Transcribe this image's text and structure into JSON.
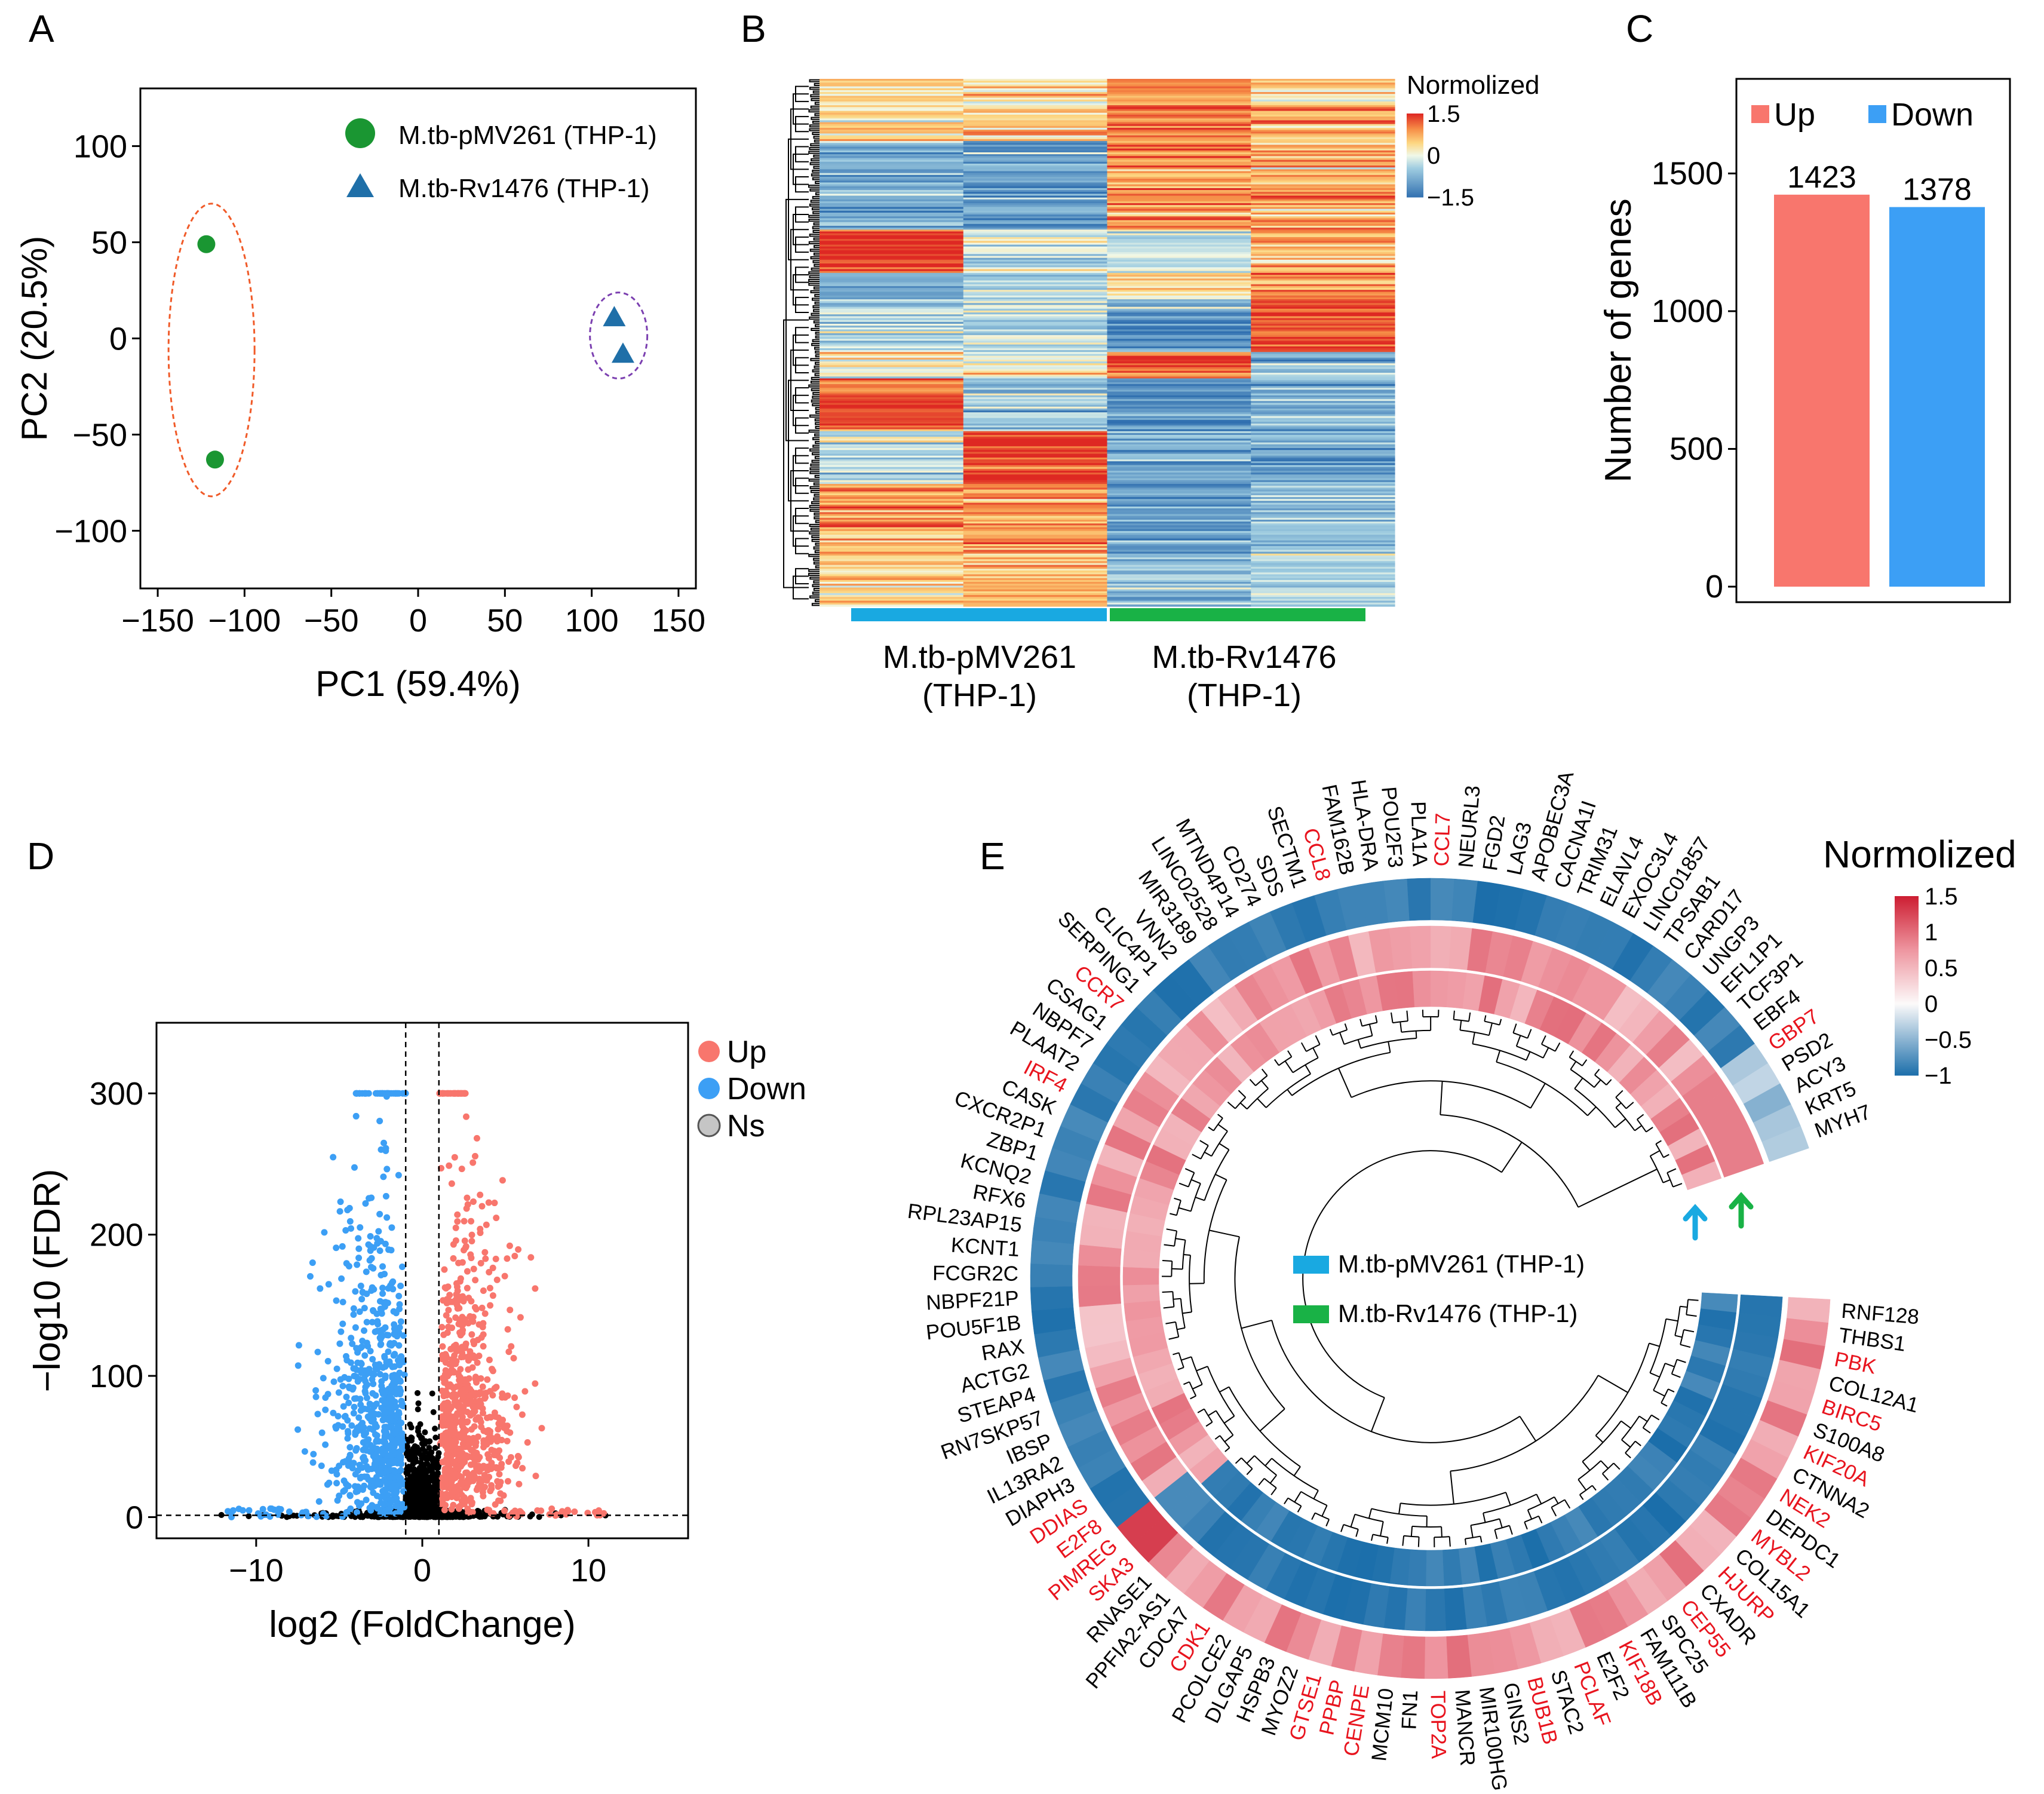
{
  "panels": {
    "a": "A",
    "b": "B",
    "c": "C",
    "d": "D",
    "e": "E"
  },
  "colors": {
    "green": "#1a9632",
    "blue": "#1f6fa8",
    "up": "#f8766d",
    "down": "#3c9ff5",
    "ns": "#7f7f7f",
    "bar_green": "#19b246",
    "bar_blue": "#19a9e1",
    "red_text": "#e8141e",
    "ellipse_red": "#f05a28",
    "ellipse_purple": "#7b3fb0"
  },
  "chart_data": [
    {
      "type": "scatter",
      "panel": "A",
      "xlabel": "PC1 (59.4%)",
      "ylabel": "PC2 (20.5%)",
      "xlim": [
        -160,
        160
      ],
      "ylim": [
        -130,
        130
      ],
      "xticks": [
        -150,
        -100,
        -50,
        0,
        50,
        100,
        150
      ],
      "yticks": [
        100,
        50,
        0,
        -50,
        -100
      ],
      "xticklabels": [
        "−150",
        "−100",
        "−50",
        "0",
        "50",
        "100",
        "150"
      ],
      "yticklabels": [
        "100",
        "50",
        "0",
        "−50",
        "−100"
      ],
      "series": [
        {
          "name": "M.tb-pMV261 (THP-1)",
          "marker": "circle",
          "points": [
            [
              -122,
              49
            ],
            [
              -117,
              -63
            ]
          ]
        },
        {
          "name": "M.tb-Rv1476 (THP-1)",
          "marker": "triangle",
          "points": [
            [
              113,
              11
            ],
            [
              118,
              -8
            ]
          ]
        }
      ]
    },
    {
      "type": "heatmap",
      "panel": "B",
      "legend_title": "Normolized",
      "scale_labels": [
        "1.5",
        "0",
        "−1.5"
      ],
      "columns": [
        "M.tb-pMV261 (THP-1)",
        "M.tb-pMV261 (THP-1)",
        "M.tb-Rv1476 (THP-1)",
        "M.tb-Rv1476 (THP-1)"
      ],
      "group_labels": [
        [
          "M.tb-pMV261",
          "(THP-1)"
        ],
        [
          "M.tb-Rv1476",
          "(THP-1)"
        ]
      ],
      "blocks": [
        {
          "rows": 7,
          "values": [
            0.4,
            0.4,
            1.0,
            0.5
          ]
        },
        {
          "rows": 10,
          "values": [
            -0.8,
            -1.0,
            0.9,
            0.7
          ]
        },
        {
          "rows": 5,
          "values": [
            1.4,
            -0.1,
            -0.3,
            0.6
          ]
        },
        {
          "rows": 3,
          "values": [
            -0.9,
            -0.4,
            0.3,
            0.8
          ]
        },
        {
          "rows": 6,
          "values": [
            -0.4,
            -0.3,
            -1.0,
            1.3
          ]
        },
        {
          "rows": 3,
          "values": [
            0.2,
            0.1,
            1.4,
            -0.7
          ]
        },
        {
          "rows": 6,
          "values": [
            1.2,
            -0.5,
            -0.9,
            -0.8
          ]
        },
        {
          "rows": 6,
          "values": [
            -0.3,
            1.5,
            -0.8,
            -0.9
          ]
        },
        {
          "rows": 8,
          "values": [
            0.8,
            0.9,
            -1.0,
            -0.6
          ]
        },
        {
          "rows": 6,
          "values": [
            0.5,
            0.6,
            -0.7,
            -0.3
          ]
        }
      ]
    },
    {
      "type": "bar",
      "panel": "C",
      "categories": [
        "Up",
        "Down"
      ],
      "values": [
        1423,
        1378
      ],
      "ylabel": "Number of genes",
      "ylim": [
        0,
        1800
      ],
      "yticks": [
        0,
        500,
        1000,
        1500
      ],
      "yticklabels": [
        "0",
        "500",
        "1000",
        "1500"
      ],
      "legend": [
        "Up",
        "Down"
      ],
      "value_labels": [
        "1423",
        "1378"
      ]
    },
    {
      "type": "scatter",
      "panel": "D",
      "xlabel": "log2 (FoldChange)",
      "ylabel": "−log10 (FDR)",
      "xlim": [
        -16,
        16
      ],
      "ylim": [
        -15,
        350
      ],
      "xticks": [
        -10,
        0,
        10
      ],
      "yticks": [
        0,
        100,
        200,
        300
      ],
      "xticklabels": [
        "−10",
        "0",
        "10"
      ],
      "yticklabels": [
        "0",
        "100",
        "200",
        "300"
      ],
      "thresholds": {
        "x": [
          -1,
          1
        ],
        "y": 1.3
      },
      "legend": [
        "Up",
        "Down",
        "Ns"
      ]
    },
    {
      "type": "heatmap",
      "panel": "E",
      "layout": "circular",
      "legend_title": "Normolized",
      "scale_labels": [
        "1.5",
        "1",
        "0.5",
        "0",
        "−0.5",
        "−1"
      ],
      "track_legend": [
        "M.tb-pMV261 (THP-1)",
        "M.tb-Rv1476 (THP-1)"
      ],
      "up_genes": [
        "CCR7",
        "IRF4",
        "DDIAS",
        "E2F8",
        "PIMREG",
        "SKA3",
        "CDK1",
        "GTSE1",
        "PPBP",
        "CENPE",
        "TOP2A",
        "BUB1B",
        "PCLAF",
        "KIF18B",
        "CEP55",
        "HJURP",
        "MYBL2",
        "NEK2",
        "KIF20A",
        "BIRC5",
        "PBK",
        "GBP7",
        "CCL8",
        "CCL7"
      ],
      "genes": [
        "RNF128",
        "THBS1",
        "PBK",
        "COL12A1",
        "BIRC5",
        "S100A8",
        "KIF20A",
        "CTNNA2",
        "NEK2",
        "DEPDC1",
        "MYBL2",
        "COL15A1",
        "HJURP",
        "CXADR",
        "CEP55",
        "SPC25",
        "FAM111B",
        "KIF18B",
        "E2F2",
        "PCLAF",
        "STAC2",
        "BUB1B",
        "GINS2",
        "MIR100HG",
        "MANCR",
        "TOP2A",
        "FN1",
        "MCM10",
        "CENPE",
        "PPBP",
        "GTSE1",
        "MYOZ2",
        "HSPB3",
        "DLGAP5",
        "PCOLCE2",
        "CDK1",
        "CDCA7",
        "PPFIA2-AS1",
        "RNASE1",
        "SKA3",
        "PIMREG",
        "E2F8",
        "DDIAS",
        "DIAPH3",
        "IL13RA2",
        "IBSP",
        "RN7SKP57",
        "STEAP4",
        "ACTG2",
        "RAX",
        "POU5F1B",
        "NBPF21P",
        "FCGR2C",
        "KCNT1",
        "RPL23AP15",
        "RFX6",
        "KCNQ2",
        "ZBP1",
        "CXCR2P1",
        "CASK",
        "IRF4",
        "PLAAT2",
        "NBPF7",
        "CSAG1",
        "CCR7",
        "SERPING1",
        "CLIC4P1",
        "VNN2",
        "MIR3189",
        "LINC02528",
        "MTND4P14",
        "CD274",
        "SDS",
        "SECTM1",
        "CCL8",
        "FAM162B",
        "HLA-DRA",
        "POU2F3",
        "PLA1A",
        "CCL7",
        "NEURL3",
        "FGD2",
        "LAG3",
        "APOBEC3A",
        "CACNA1I",
        "TRIM31",
        "ELAVL4",
        "EXOC3L4",
        "LINC01857",
        "TPSAB1",
        "CARD17",
        "UNGP3",
        "EFL1P1",
        "TCF3P1",
        "EBF4",
        "GBP7",
        "PSD2",
        "ACY3",
        "KRT5",
        "MYH7"
      ]
    }
  ]
}
